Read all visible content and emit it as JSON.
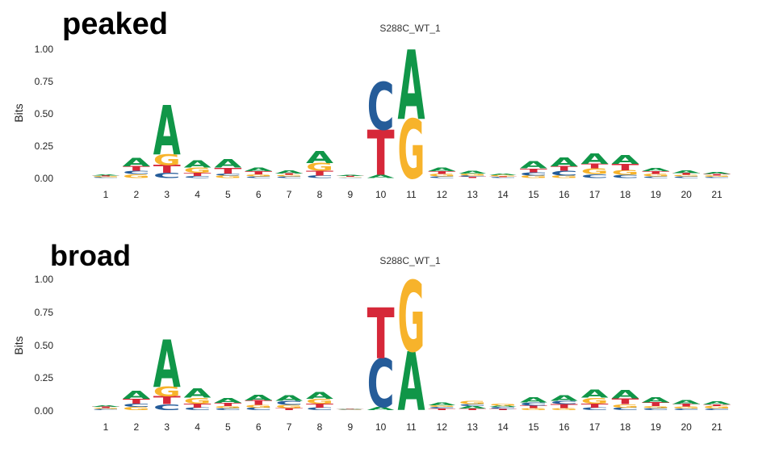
{
  "chart_data": [
    {
      "type": "sequence-logo",
      "panel_label": "peaked",
      "title": "S288C_WT_1",
      "ylabel": "Bits",
      "ylim": [
        0,
        1.0
      ],
      "yticks": [
        "0.00",
        "0.25",
        "0.50",
        "0.75",
        "1.00"
      ],
      "positions": [
        "1",
        "2",
        "3",
        "4",
        "5",
        "6",
        "7",
        "8",
        "9",
        "10",
        "11",
        "12",
        "13",
        "14",
        "15",
        "16",
        "17",
        "18",
        "19",
        "20",
        "21"
      ],
      "stacks": [
        [
          {
            "l": "C",
            "h": 0.006
          },
          {
            "l": "G",
            "h": 0.006
          },
          {
            "l": "T",
            "h": 0.006
          },
          {
            "l": "A",
            "h": 0.008
          }
        ],
        [
          {
            "l": "G",
            "h": 0.03
          },
          {
            "l": "C",
            "h": 0.025
          },
          {
            "l": "T",
            "h": 0.035
          },
          {
            "l": "A",
            "h": 0.065
          }
        ],
        [
          {
            "l": "C",
            "h": 0.04
          },
          {
            "l": "T",
            "h": 0.06
          },
          {
            "l": "G",
            "h": 0.085
          },
          {
            "l": "A",
            "h": 0.385
          }
        ],
        [
          {
            "l": "C",
            "h": 0.015
          },
          {
            "l": "T",
            "h": 0.025
          },
          {
            "l": "G",
            "h": 0.04
          },
          {
            "l": "A",
            "h": 0.055
          }
        ],
        [
          {
            "l": "G",
            "h": 0.02
          },
          {
            "l": "C",
            "h": 0.015
          },
          {
            "l": "T",
            "h": 0.045
          },
          {
            "l": "A",
            "h": 0.065
          }
        ],
        [
          {
            "l": "C",
            "h": 0.012
          },
          {
            "l": "G",
            "h": 0.015
          },
          {
            "l": "T",
            "h": 0.025
          },
          {
            "l": "A",
            "h": 0.03
          }
        ],
        [
          {
            "l": "C",
            "h": 0.012
          },
          {
            "l": "G",
            "h": 0.012
          },
          {
            "l": "T",
            "h": 0.012
          },
          {
            "l": "A",
            "h": 0.025
          }
        ],
        [
          {
            "l": "C",
            "h": 0.02
          },
          {
            "l": "T",
            "h": 0.035
          },
          {
            "l": "G",
            "h": 0.06
          },
          {
            "l": "A",
            "h": 0.095
          }
        ],
        [
          {
            "l": "C",
            "h": 0.005
          },
          {
            "l": "G",
            "h": 0.005
          },
          {
            "l": "T",
            "h": 0.006
          },
          {
            "l": "A",
            "h": 0.006
          }
        ],
        [
          {
            "l": "A",
            "h": 0.025
          },
          {
            "l": "T",
            "h": 0.35
          },
          {
            "l": "C",
            "h": 0.365
          }
        ],
        [
          {
            "l": "G",
            "h": 0.46
          },
          {
            "l": "A",
            "h": 0.54
          }
        ],
        [
          {
            "l": "C",
            "h": 0.012
          },
          {
            "l": "G",
            "h": 0.02
          },
          {
            "l": "T",
            "h": 0.02
          },
          {
            "l": "A",
            "h": 0.03
          }
        ],
        [
          {
            "l": "T",
            "h": 0.01
          },
          {
            "l": "C",
            "h": 0.01
          },
          {
            "l": "G",
            "h": 0.015
          },
          {
            "l": "A",
            "h": 0.02
          }
        ],
        [
          {
            "l": "C",
            "h": 0.006
          },
          {
            "l": "T",
            "h": 0.006
          },
          {
            "l": "G",
            "h": 0.01
          },
          {
            "l": "A",
            "h": 0.01
          }
        ],
        [
          {
            "l": "G",
            "h": 0.02
          },
          {
            "l": "C",
            "h": 0.025
          },
          {
            "l": "T",
            "h": 0.03
          },
          {
            "l": "A",
            "h": 0.055
          }
        ],
        [
          {
            "l": "G",
            "h": 0.02
          },
          {
            "l": "C",
            "h": 0.035
          },
          {
            "l": "T",
            "h": 0.035
          },
          {
            "l": "A",
            "h": 0.07
          }
        ],
        [
          {
            "l": "C",
            "h": 0.03
          },
          {
            "l": "G",
            "h": 0.045
          },
          {
            "l": "T",
            "h": 0.035
          },
          {
            "l": "A",
            "h": 0.08
          }
        ],
        [
          {
            "l": "C",
            "h": 0.025
          },
          {
            "l": "G",
            "h": 0.035
          },
          {
            "l": "T",
            "h": 0.05
          },
          {
            "l": "A",
            "h": 0.07
          }
        ],
        [
          {
            "l": "C",
            "h": 0.012
          },
          {
            "l": "G",
            "h": 0.02
          },
          {
            "l": "T",
            "h": 0.02
          },
          {
            "l": "A",
            "h": 0.025
          }
        ],
        [
          {
            "l": "C",
            "h": 0.012
          },
          {
            "l": "G",
            "h": 0.012
          },
          {
            "l": "T",
            "h": 0.015
          },
          {
            "l": "A",
            "h": 0.02
          }
        ],
        [
          {
            "l": "C",
            "h": 0.008
          },
          {
            "l": "G",
            "h": 0.012
          },
          {
            "l": "T",
            "h": 0.012
          },
          {
            "l": "A",
            "h": 0.015
          }
        ]
      ]
    },
    {
      "type": "sequence-logo",
      "panel_label": "broad",
      "title": "S288C_WT_1",
      "ylabel": "Bits",
      "ylim": [
        0,
        1.0
      ],
      "yticks": [
        "0.00",
        "0.25",
        "0.50",
        "0.75",
        "1.00"
      ],
      "positions": [
        "1",
        "2",
        "3",
        "4",
        "5",
        "6",
        "7",
        "8",
        "9",
        "10",
        "11",
        "12",
        "13",
        "14",
        "15",
        "16",
        "17",
        "18",
        "19",
        "20",
        "21"
      ],
      "stacks": [
        [
          {
            "l": "C",
            "h": 0.008
          },
          {
            "l": "G",
            "h": 0.008
          },
          {
            "l": "T",
            "h": 0.01
          },
          {
            "l": "A",
            "h": 0.012
          }
        ],
        [
          {
            "l": "G",
            "h": 0.025
          },
          {
            "l": "C",
            "h": 0.025
          },
          {
            "l": "T",
            "h": 0.035
          },
          {
            "l": "A",
            "h": 0.06
          }
        ],
        [
          {
            "l": "C",
            "h": 0.045
          },
          {
            "l": "T",
            "h": 0.06
          },
          {
            "l": "G",
            "h": 0.075
          },
          {
            "l": "A",
            "h": 0.36
          }
        ],
        [
          {
            "l": "C",
            "h": 0.02
          },
          {
            "l": "T",
            "h": 0.03
          },
          {
            "l": "G",
            "h": 0.045
          },
          {
            "l": "A",
            "h": 0.07
          }
        ],
        [
          {
            "l": "C",
            "h": 0.015
          },
          {
            "l": "G",
            "h": 0.015
          },
          {
            "l": "T",
            "h": 0.025
          },
          {
            "l": "A",
            "h": 0.035
          }
        ],
        [
          {
            "l": "C",
            "h": 0.02
          },
          {
            "l": "G",
            "h": 0.02
          },
          {
            "l": "T",
            "h": 0.035
          },
          {
            "l": "A",
            "h": 0.045
          }
        ],
        [
          {
            "l": "T",
            "h": 0.015
          },
          {
            "l": "G",
            "h": 0.025
          },
          {
            "l": "C",
            "h": 0.03
          },
          {
            "l": "A",
            "h": 0.045
          }
        ],
        [
          {
            "l": "C",
            "h": 0.02
          },
          {
            "l": "T",
            "h": 0.03
          },
          {
            "l": "G",
            "h": 0.035
          },
          {
            "l": "A",
            "h": 0.05
          }
        ],
        [
          {
            "l": "C",
            "h": 0.003
          },
          {
            "l": "G",
            "h": 0.003
          },
          {
            "l": "T",
            "h": 0.003
          },
          {
            "l": "A",
            "h": 0.003
          }
        ],
        [
          {
            "l": "A",
            "h": 0.025
          },
          {
            "l": "C",
            "h": 0.37
          },
          {
            "l": "T",
            "h": 0.39
          }
        ],
        [
          {
            "l": "A",
            "h": 0.45
          },
          {
            "l": "G",
            "h": 0.54
          }
        ],
        [
          {
            "l": "T",
            "h": 0.012
          },
          {
            "l": "C",
            "h": 0.012
          },
          {
            "l": "G",
            "h": 0.012
          },
          {
            "l": "A",
            "h": 0.02
          }
        ],
        [
          {
            "l": "T",
            "h": 0.012
          },
          {
            "l": "A",
            "h": 0.02
          },
          {
            "l": "C",
            "h": 0.015
          },
          {
            "l": "G",
            "h": 0.025
          }
        ],
        [
          {
            "l": "T",
            "h": 0.01
          },
          {
            "l": "C",
            "h": 0.015
          },
          {
            "l": "A",
            "h": 0.01
          },
          {
            "l": "G",
            "h": 0.015
          }
        ],
        [
          {
            "l": "G",
            "h": 0.015
          },
          {
            "l": "T",
            "h": 0.02
          },
          {
            "l": "C",
            "h": 0.025
          },
          {
            "l": "A",
            "h": 0.04
          }
        ],
        [
          {
            "l": "G",
            "h": 0.015
          },
          {
            "l": "T",
            "h": 0.03
          },
          {
            "l": "C",
            "h": 0.025
          },
          {
            "l": "A",
            "h": 0.045
          }
        ],
        [
          {
            "l": "C",
            "h": 0.02
          },
          {
            "l": "T",
            "h": 0.03
          },
          {
            "l": "G",
            "h": 0.045
          },
          {
            "l": "A",
            "h": 0.06
          }
        ],
        [
          {
            "l": "C",
            "h": 0.02
          },
          {
            "l": "G",
            "h": 0.025
          },
          {
            "l": "T",
            "h": 0.045
          },
          {
            "l": "A",
            "h": 0.065
          }
        ],
        [
          {
            "l": "C",
            "h": 0.015
          },
          {
            "l": "G",
            "h": 0.015
          },
          {
            "l": "T",
            "h": 0.03
          },
          {
            "l": "A",
            "h": 0.04
          }
        ],
        [
          {
            "l": "C",
            "h": 0.012
          },
          {
            "l": "G",
            "h": 0.015
          },
          {
            "l": "T",
            "h": 0.02
          },
          {
            "l": "A",
            "h": 0.03
          }
        ],
        [
          {
            "l": "C",
            "h": 0.012
          },
          {
            "l": "G",
            "h": 0.02
          },
          {
            "l": "T",
            "h": 0.012
          },
          {
            "l": "A",
            "h": 0.025
          }
        ]
      ]
    }
  ],
  "colors": {
    "A": "#109648",
    "C": "#255C99",
    "G": "#F7B32B",
    "T": "#D62839"
  }
}
